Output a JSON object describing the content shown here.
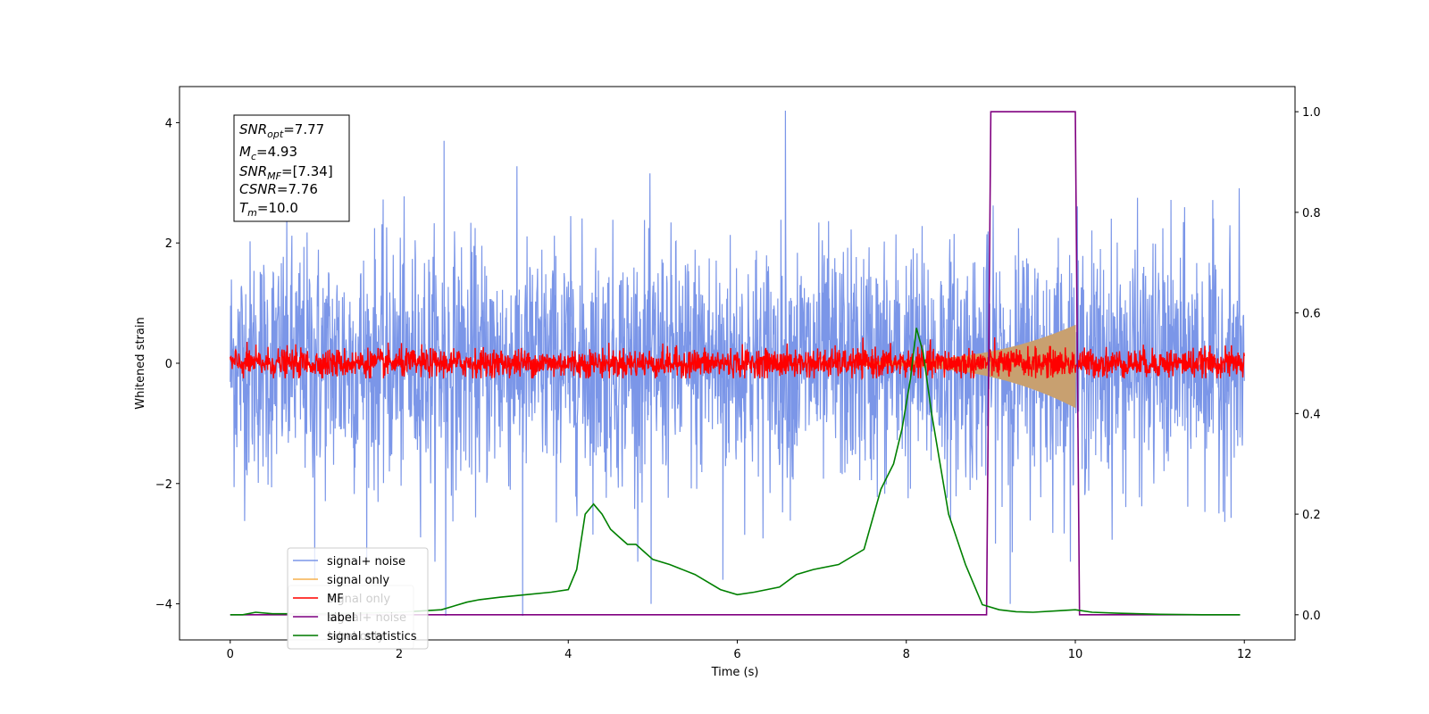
{
  "chart_data": {
    "type": "line",
    "xlabel": "Time (s)",
    "ylabel": "Whitened strain",
    "x_ticks": [
      0,
      2,
      4,
      6,
      8,
      10,
      12
    ],
    "y_ticks": [
      -4,
      -2,
      0,
      2,
      4
    ],
    "y2_ticks": [
      0.0,
      0.2,
      0.4,
      0.6,
      0.8,
      1.0
    ],
    "x_tick_labels": [
      "0",
      "2",
      "4",
      "6",
      "8",
      "10",
      "12"
    ],
    "y_tick_labels": [
      "−4",
      "−2",
      "0",
      "2",
      "4"
    ],
    "y2_tick_labels": [
      "0.0",
      "0.2",
      "0.4",
      "0.6",
      "0.8",
      "1.0"
    ],
    "xlim": [
      -0.6,
      12.6
    ],
    "ylim": [
      -4.6,
      4.6
    ],
    "y2lim": [
      -0.05,
      1.05
    ],
    "grid": false,
    "legend_position": "lower-left",
    "annotation": {
      "snr_opt": {
        "base": "SNR",
        "sub": "opt",
        "value": "=7.77"
      },
      "mc": {
        "base": "M",
        "sub": "c",
        "value": "=4.93"
      },
      "snr_mf": {
        "base": "SNR",
        "sub": "MF",
        "value": "=[7.34]"
      },
      "csnr": {
        "base": "CSNR",
        "value": "=7.76"
      },
      "tm": {
        "base": "T",
        "sub": "m",
        "value": "=10.0"
      }
    },
    "series": [
      {
        "name": "signal+ noise",
        "color": "#7b96e8",
        "axis": "left",
        "kind": "noise",
        "x_range": [
          0,
          12
        ],
        "amplitude_sd": 1.0,
        "notable_peaks": [
          [
            2.53,
            3.7
          ],
          [
            3.46,
            -4.2
          ],
          [
            2.55,
            -4.2
          ],
          [
            6.57,
            4.2
          ],
          [
            4.98,
            -4.0
          ],
          [
            9.23,
            -4.0
          ],
          [
            1.0,
            -3.6
          ],
          [
            5.83,
            -3.6
          ]
        ]
      },
      {
        "name": "signal only",
        "color": "#f5b04e",
        "axis": "left",
        "kind": "chirp",
        "start": 7.5,
        "end": 10.0,
        "peak_amplitude": 1.0
      },
      {
        "name": "signal only",
        "color": "#c8a070",
        "axis": "left",
        "kind": "chirp-fill",
        "start": 7.5,
        "end": 10.0,
        "peak_amplitude": 1.0
      },
      {
        "name": "MF",
        "color": "#ff0000",
        "axis": "left",
        "kind": "noise",
        "x_range": [
          0,
          12
        ],
        "amplitude_sd": 0.12
      },
      {
        "name": "label",
        "color": "#800080",
        "axis": "right",
        "x": [
          0,
          8.95,
          9.0,
          10.0,
          10.05,
          11.95
        ],
        "y": [
          0,
          0,
          1,
          1,
          0,
          0
        ]
      },
      {
        "name": "signal statistics",
        "color": "#008000",
        "axis": "right",
        "x": [
          0,
          0.15,
          0.3,
          0.5,
          1.0,
          1.5,
          2.0,
          2.5,
          2.8,
          2.95,
          3.2,
          3.5,
          3.8,
          4.0,
          4.1,
          4.2,
          4.3,
          4.4,
          4.5,
          4.6,
          4.7,
          4.8,
          4.9,
          5.0,
          5.2,
          5.5,
          5.8,
          6.0,
          6.2,
          6.5,
          6.7,
          6.9,
          7.2,
          7.5,
          7.7,
          7.85,
          7.95,
          8.05,
          8.12,
          8.2,
          8.3,
          8.5,
          8.7,
          8.9,
          9.1,
          9.3,
          9.5,
          9.8,
          10.0,
          10.2,
          10.5,
          11.0,
          11.5,
          11.95
        ],
        "y": [
          0.0,
          0.0,
          0.005,
          0.002,
          0.002,
          0.003,
          0.005,
          0.01,
          0.025,
          0.03,
          0.035,
          0.04,
          0.045,
          0.05,
          0.09,
          0.2,
          0.22,
          0.2,
          0.17,
          0.155,
          0.14,
          0.14,
          0.125,
          0.11,
          0.1,
          0.08,
          0.05,
          0.04,
          0.045,
          0.055,
          0.08,
          0.09,
          0.1,
          0.13,
          0.25,
          0.3,
          0.37,
          0.47,
          0.57,
          0.52,
          0.4,
          0.2,
          0.1,
          0.02,
          0.01,
          0.006,
          0.005,
          0.008,
          0.01,
          0.005,
          0.003,
          0.001,
          0.0,
          0.0
        ]
      }
    ],
    "legend": [
      "signal+ noise",
      "signal only",
      "MF",
      "label",
      "signal statistics"
    ],
    "legend_overlay": [
      "signal only",
      "signal+ noise",
      "label only"
    ]
  }
}
